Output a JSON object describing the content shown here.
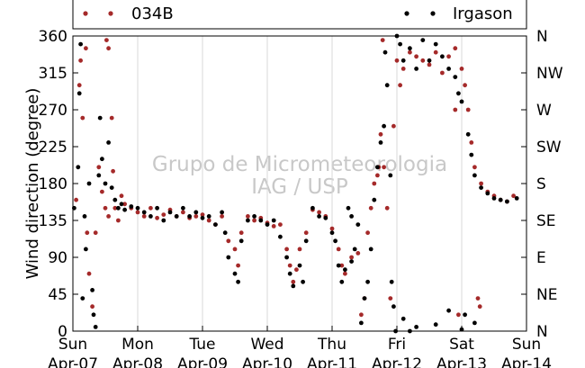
{
  "chart_data": {
    "type": "scatter",
    "title": "",
    "xlabel": "",
    "ylabel": "Wind direction (degree)",
    "ylim": [
      0,
      360
    ],
    "xlim": [
      0,
      7
    ],
    "yticks": [
      0,
      45,
      90,
      135,
      180,
      225,
      270,
      315,
      360
    ],
    "right_tick_labels": [
      "N",
      "NE",
      "E",
      "SE",
      "S",
      "SW",
      "W",
      "NW",
      "N"
    ],
    "x_tick_labels": [
      {
        "day": "Sun",
        "date": "Apr-07"
      },
      {
        "day": "Mon",
        "date": "Apr-08"
      },
      {
        "day": "Tue",
        "date": "Apr-09"
      },
      {
        "day": "Wed",
        "date": "Apr-10"
      },
      {
        "day": "Thu",
        "date": "Apr-11"
      },
      {
        "day": "Fri",
        "date": "Apr-12"
      },
      {
        "day": "Sat",
        "date": "Apr-13"
      },
      {
        "day": "Sun",
        "date": "Apr-14"
      }
    ],
    "grid": "vertical",
    "legend_position": "top",
    "watermark": [
      "Grupo de Micrometeorologia",
      "IAG / USP"
    ],
    "series": [
      {
        "name": "034B",
        "color": "#a52a2a",
        "points": [
          [
            0.05,
            160
          ],
          [
            0.1,
            300
          ],
          [
            0.12,
            330
          ],
          [
            0.15,
            260
          ],
          [
            0.2,
            345
          ],
          [
            0.22,
            120
          ],
          [
            0.25,
            70
          ],
          [
            0.3,
            30
          ],
          [
            0.35,
            120
          ],
          [
            0.4,
            200
          ],
          [
            0.45,
            170
          ],
          [
            0.5,
            150
          ],
          [
            0.55,
            140
          ],
          [
            0.52,
            355
          ],
          [
            0.55,
            345
          ],
          [
            0.6,
            260
          ],
          [
            0.62,
            195
          ],
          [
            0.65,
            150
          ],
          [
            0.7,
            135
          ],
          [
            0.75,
            165
          ],
          [
            0.8,
            155
          ],
          [
            0.9,
            150
          ],
          [
            1.0,
            145
          ],
          [
            1.1,
            140
          ],
          [
            1.2,
            150
          ],
          [
            1.3,
            138
          ],
          [
            1.4,
            142
          ],
          [
            1.5,
            148
          ],
          [
            1.6,
            140
          ],
          [
            1.7,
            145
          ],
          [
            1.8,
            138
          ],
          [
            1.9,
            140
          ],
          [
            2.0,
            142
          ],
          [
            2.1,
            135
          ],
          [
            2.2,
            130
          ],
          [
            2.3,
            140
          ],
          [
            2.4,
            110
          ],
          [
            2.5,
            100
          ],
          [
            2.55,
            80
          ],
          [
            2.6,
            120
          ],
          [
            2.7,
            140
          ],
          [
            2.8,
            135
          ],
          [
            2.9,
            138
          ],
          [
            3.0,
            132
          ],
          [
            3.1,
            128
          ],
          [
            3.2,
            130
          ],
          [
            3.3,
            100
          ],
          [
            3.35,
            80
          ],
          [
            3.4,
            60
          ],
          [
            3.45,
            75
          ],
          [
            3.5,
            100
          ],
          [
            3.6,
            120
          ],
          [
            3.7,
            148
          ],
          [
            3.8,
            145
          ],
          [
            3.9,
            140
          ],
          [
            4.0,
            125
          ],
          [
            4.1,
            100
          ],
          [
            4.15,
            80
          ],
          [
            4.2,
            70
          ],
          [
            4.3,
            90
          ],
          [
            4.4,
            95
          ],
          [
            4.45,
            20
          ],
          [
            4.5,
            40
          ],
          [
            4.55,
            120
          ],
          [
            4.6,
            150
          ],
          [
            4.65,
            180
          ],
          [
            4.7,
            190
          ],
          [
            4.72,
            200
          ],
          [
            4.75,
            240
          ],
          [
            4.78,
            355
          ],
          [
            4.8,
            200
          ],
          [
            4.85,
            150
          ],
          [
            4.9,
            40
          ],
          [
            4.95,
            250
          ],
          [
            5.0,
            330
          ],
          [
            5.05,
            300
          ],
          [
            5.1,
            320
          ],
          [
            5.2,
            340
          ],
          [
            5.3,
            335
          ],
          [
            5.4,
            330
          ],
          [
            5.5,
            325
          ],
          [
            5.6,
            340
          ],
          [
            5.7,
            315
          ],
          [
            5.8,
            335
          ],
          [
            5.9,
            345
          ],
          [
            6.0,
            320
          ],
          [
            6.05,
            300
          ],
          [
            6.1,
            270
          ],
          [
            6.15,
            230
          ],
          [
            6.2,
            200
          ],
          [
            6.3,
            180
          ],
          [
            6.4,
            170
          ],
          [
            6.5,
            165
          ],
          [
            6.6,
            160
          ],
          [
            6.7,
            158
          ],
          [
            6.8,
            165
          ],
          [
            6.25,
            40
          ],
          [
            6.28,
            30
          ],
          [
            5.9,
            270
          ],
          [
            5.95,
            20
          ]
        ]
      },
      {
        "name": "Irgason",
        "color": "#000000",
        "points": [
          [
            0.02,
            150
          ],
          [
            0.08,
            200
          ],
          [
            0.1,
            290
          ],
          [
            0.12,
            350
          ],
          [
            0.15,
            40
          ],
          [
            0.18,
            140
          ],
          [
            0.2,
            100
          ],
          [
            0.25,
            180
          ],
          [
            0.3,
            50
          ],
          [
            0.32,
            20
          ],
          [
            0.35,
            5
          ],
          [
            0.4,
            190
          ],
          [
            0.42,
            260
          ],
          [
            0.45,
            210
          ],
          [
            0.5,
            180
          ],
          [
            0.55,
            230
          ],
          [
            0.6,
            175
          ],
          [
            0.65,
            160
          ],
          [
            0.7,
            150
          ],
          [
            0.75,
            155
          ],
          [
            0.8,
            148
          ],
          [
            0.9,
            152
          ],
          [
            1.0,
            150
          ],
          [
            1.1,
            145
          ],
          [
            1.2,
            140
          ],
          [
            1.3,
            150
          ],
          [
            1.4,
            135
          ],
          [
            1.5,
            145
          ],
          [
            1.6,
            140
          ],
          [
            1.7,
            150
          ],
          [
            1.8,
            140
          ],
          [
            1.9,
            145
          ],
          [
            2.0,
            138
          ],
          [
            2.1,
            140
          ],
          [
            2.2,
            130
          ],
          [
            2.3,
            145
          ],
          [
            2.35,
            120
          ],
          [
            2.4,
            90
          ],
          [
            2.5,
            70
          ],
          [
            2.55,
            60
          ],
          [
            2.6,
            110
          ],
          [
            2.7,
            135
          ],
          [
            2.8,
            140
          ],
          [
            2.9,
            135
          ],
          [
            3.0,
            130
          ],
          [
            3.1,
            135
          ],
          [
            3.2,
            115
          ],
          [
            3.3,
            90
          ],
          [
            3.35,
            70
          ],
          [
            3.4,
            55
          ],
          [
            3.5,
            80
          ],
          [
            3.55,
            60
          ],
          [
            3.6,
            110
          ],
          [
            3.7,
            150
          ],
          [
            3.8,
            140
          ],
          [
            3.9,
            138
          ],
          [
            4.0,
            120
          ],
          [
            4.05,
            110
          ],
          [
            4.1,
            80
          ],
          [
            4.15,
            60
          ],
          [
            4.2,
            75
          ],
          [
            4.3,
            85
          ],
          [
            4.35,
            100
          ],
          [
            4.4,
            130
          ],
          [
            4.45,
            10
          ],
          [
            4.5,
            40
          ],
          [
            4.55,
            60
          ],
          [
            4.6,
            100
          ],
          [
            4.65,
            160
          ],
          [
            4.7,
            200
          ],
          [
            4.75,
            230
          ],
          [
            4.8,
            250
          ],
          [
            4.82,
            340
          ],
          [
            4.85,
            300
          ],
          [
            4.9,
            190
          ],
          [
            4.92,
            60
          ],
          [
            4.95,
            30
          ],
          [
            4.98,
            0
          ],
          [
            5.0,
            360
          ],
          [
            5.05,
            350
          ],
          [
            5.1,
            330
          ],
          [
            5.2,
            345
          ],
          [
            5.3,
            320
          ],
          [
            5.4,
            355
          ],
          [
            5.5,
            330
          ],
          [
            5.6,
            350
          ],
          [
            5.7,
            335
          ],
          [
            5.8,
            320
          ],
          [
            5.9,
            310
          ],
          [
            5.95,
            290
          ],
          [
            6.0,
            280
          ],
          [
            6.1,
            240
          ],
          [
            6.15,
            215
          ],
          [
            6.2,
            190
          ],
          [
            6.3,
            175
          ],
          [
            6.4,
            168
          ],
          [
            6.5,
            162
          ],
          [
            6.6,
            160
          ],
          [
            6.7,
            158
          ],
          [
            6.85,
            162
          ],
          [
            5.3,
            5
          ],
          [
            5.6,
            8
          ],
          [
            6.05,
            20
          ],
          [
            6.2,
            10
          ],
          [
            5.1,
            15
          ],
          [
            5.8,
            25
          ],
          [
            5.2,
            0
          ],
          [
            6.0,
            2
          ],
          [
            4.3,
            140
          ],
          [
            4.25,
            150
          ]
        ]
      }
    ]
  }
}
